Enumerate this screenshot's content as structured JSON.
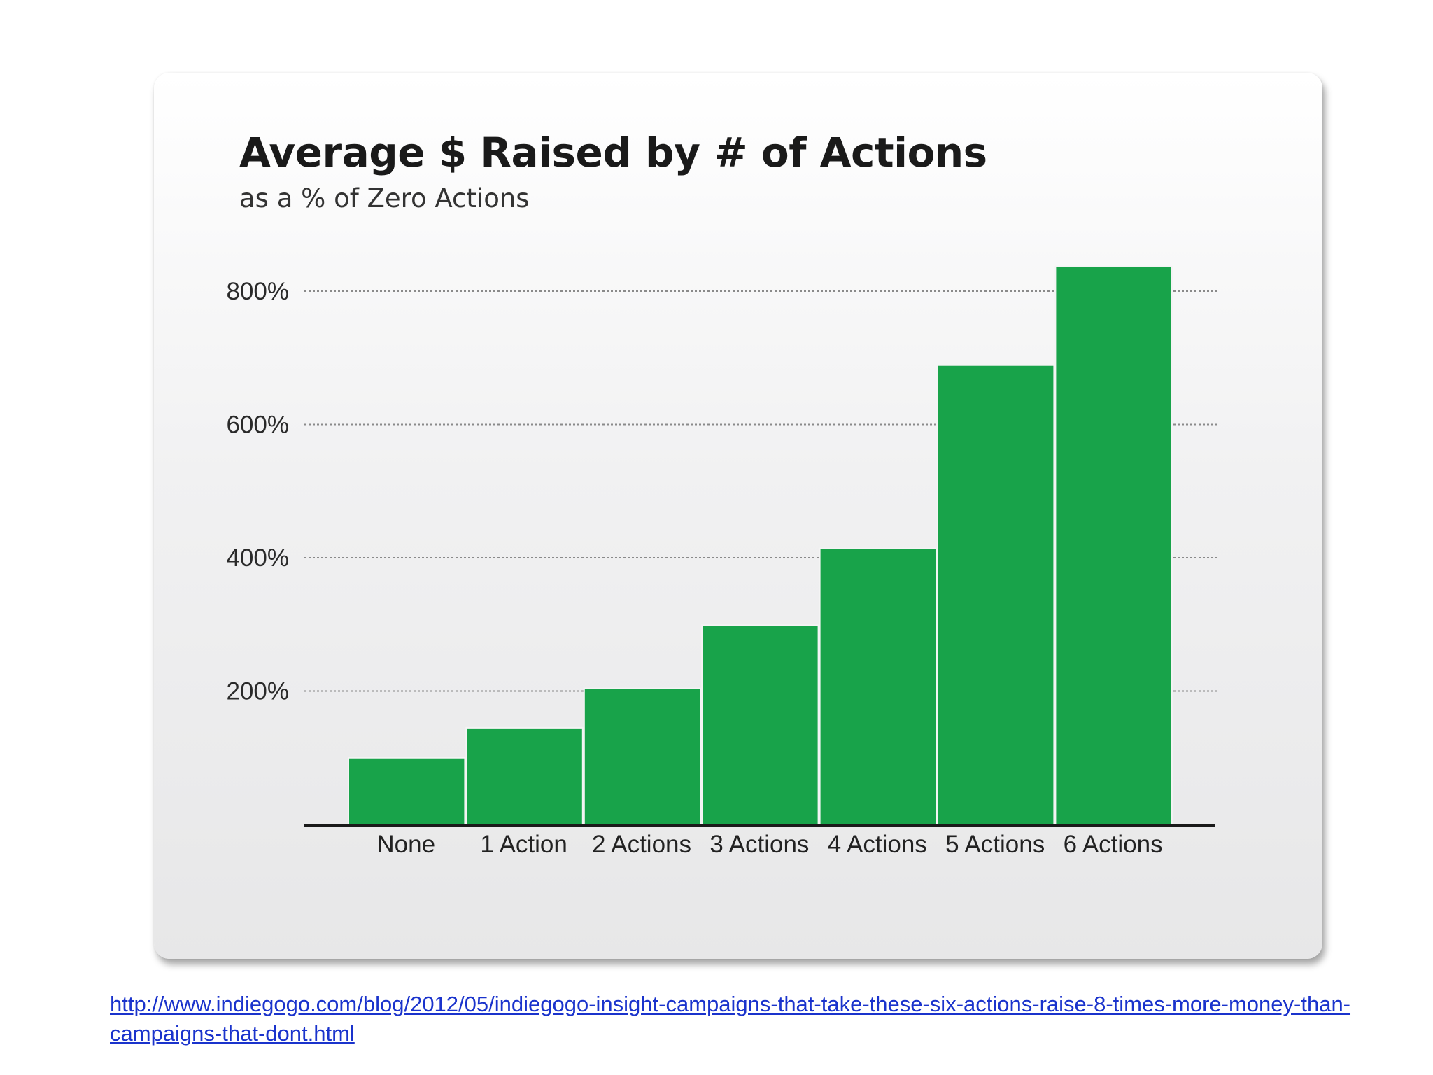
{
  "chart_data": {
    "type": "bar",
    "title": "Average $ Raised by # of Actions",
    "subtitle": "as a % of Zero Actions",
    "categories": [
      "None",
      "1 Action",
      "2 Actions",
      "3 Actions",
      "4 Actions",
      "5 Actions",
      "6 Actions"
    ],
    "values": [
      100,
      145,
      204,
      299,
      414,
      689,
      837
    ],
    "yticks": [
      200,
      400,
      600,
      800
    ],
    "ytick_labels": [
      "200%",
      "400%",
      "600%",
      "800%"
    ],
    "ylim": [
      0,
      850
    ],
    "grid": "horizontal-dotted",
    "bar_color": "#18a34a",
    "xlabel": "",
    "ylabel": ""
  },
  "source_link": "http://www.indiegogo.com/blog/2012/05/indiegogo-insight-campaigns-that-take-these-six-actions-raise-8-times-more-money-than-campaigns-that-dont.html"
}
